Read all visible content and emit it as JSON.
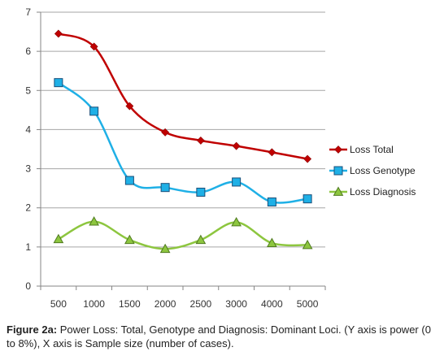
{
  "chart_data": {
    "type": "line",
    "x": [
      500,
      1000,
      1500,
      2000,
      2500,
      3000,
      4000,
      5000
    ],
    "x_tick_labels": [
      "500",
      "1000",
      "1500",
      "2000",
      "2500",
      "3000",
      "4000",
      "5000"
    ],
    "ylim": [
      0,
      7
    ],
    "y_ticks": [
      0,
      1,
      2,
      3,
      4,
      5,
      6,
      7
    ],
    "grid": true,
    "legend_position": "right",
    "series": [
      {
        "name": "Loss Total",
        "color": "#c00000",
        "marker": "diamond",
        "values": [
          6.45,
          6.12,
          4.6,
          3.93,
          3.72,
          3.58,
          3.42,
          3.25
        ]
      },
      {
        "name": "Loss Genotype",
        "color": "#1fb0e6",
        "marker": "square",
        "values": [
          5.2,
          4.47,
          2.7,
          2.52,
          2.4,
          2.66,
          2.15,
          2.23
        ]
      },
      {
        "name": "Loss Diagnosis",
        "color": "#8dc63f",
        "marker": "triangle",
        "values": [
          1.2,
          1.65,
          1.18,
          0.95,
          1.18,
          1.63,
          1.1,
          1.05
        ]
      }
    ]
  },
  "caption": {
    "label": "Figure 2a:",
    "text": " Power Loss: Total, Genotype and Diagnosis: Dominant Loci. (Y axis is power (0 to 8%), X axis is Sample size (number of cases)."
  }
}
